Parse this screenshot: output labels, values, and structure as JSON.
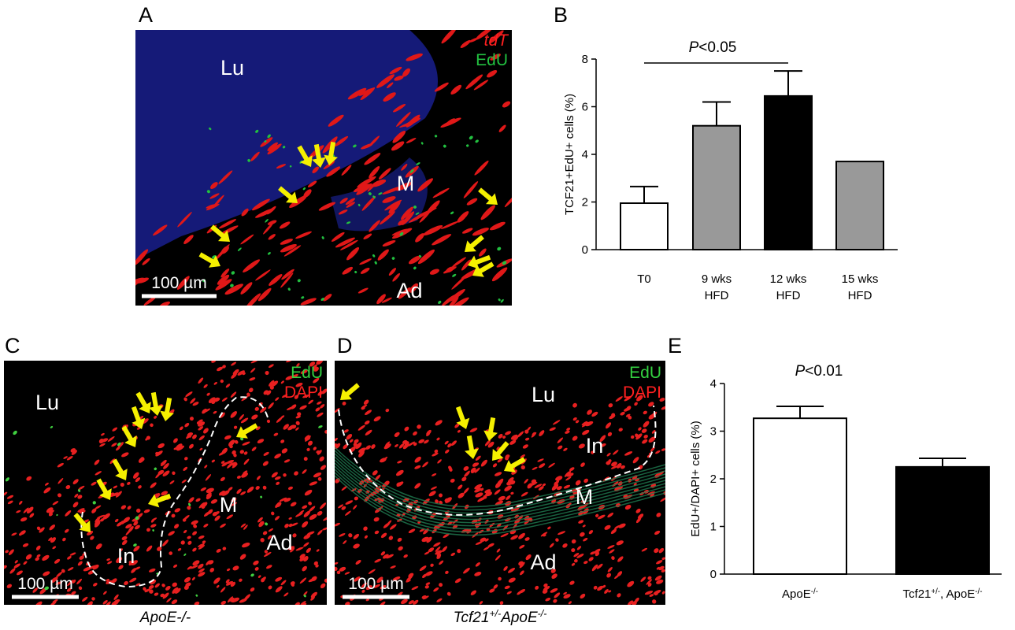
{
  "panel_a": {
    "letter": "A",
    "labels": {
      "lumen": "Lu",
      "media": "M",
      "adventitia": "Ad"
    },
    "channels": [
      "tdT",
      "EdU"
    ],
    "scale_bar": "100 µm"
  },
  "chart_b": {
    "type": "bar",
    "letter": "B",
    "ylabel": "TCF21+EdU+ cells (%)",
    "categories": [
      [
        {
          "text": "T0"
        }
      ],
      [
        {
          "text": "9 wks"
        },
        {
          "text": "HFD"
        }
      ],
      [
        {
          "text": "12 wks"
        },
        {
          "text": "HFD"
        }
      ],
      [
        {
          "text": "15 wks"
        },
        {
          "text": "HFD"
        }
      ]
    ],
    "values": [
      1.95,
      5.2,
      6.45,
      3.7
    ],
    "errors": [
      0.7,
      1.0,
      1.05,
      null
    ],
    "colors": [
      "#ffffff",
      "#999999",
      "#000000",
      "#999999"
    ],
    "ylim": [
      0,
      8
    ],
    "yticks": [
      0,
      2,
      4,
      6,
      8
    ],
    "annotation": "P<0.05"
  },
  "panel_c": {
    "letter": "C",
    "labels": {
      "lumen": "Lu",
      "media": "M",
      "intima": "In",
      "adventitia": "Ad"
    },
    "channels": [
      "EdU",
      "DAPI"
    ],
    "scale_bar": "100 µm",
    "caption": [
      {
        "text": "ApoE-/-"
      }
    ]
  },
  "panel_d": {
    "letter": "D",
    "labels": {
      "lumen": "Lu",
      "media": "M",
      "intima": "In",
      "adventitia": "Ad"
    },
    "channels": [
      "EdU",
      "DAPI"
    ],
    "scale_bar": "100 µm",
    "caption": [
      {
        "text": "Tcf21"
      },
      {
        "text": "+/-",
        "sup": true
      },
      {
        "text": "ApoE"
      },
      {
        "text": "-/-",
        "sup": true
      }
    ]
  },
  "chart_e": {
    "type": "bar",
    "letter": "E",
    "ylabel": "EdU+/DAPI+ cells (%)",
    "categories": [
      [
        [
          {
            "text": "ApoE"
          },
          {
            "text": "-/-",
            "sup": true
          }
        ]
      ],
      [
        [
          {
            "text": "Tcf21"
          },
          {
            "text": "+/-",
            "sup": true
          },
          {
            "text": ", ApoE"
          },
          {
            "text": "-/-",
            "sup": true
          }
        ]
      ]
    ],
    "values": [
      3.27,
      2.25
    ],
    "errors": [
      0.25,
      0.18
    ],
    "colors": [
      "#ffffff",
      "#000000"
    ],
    "ylim": [
      0,
      4
    ],
    "yticks": [
      0,
      1,
      2,
      3,
      4
    ],
    "annotation": "P<0.01"
  }
}
